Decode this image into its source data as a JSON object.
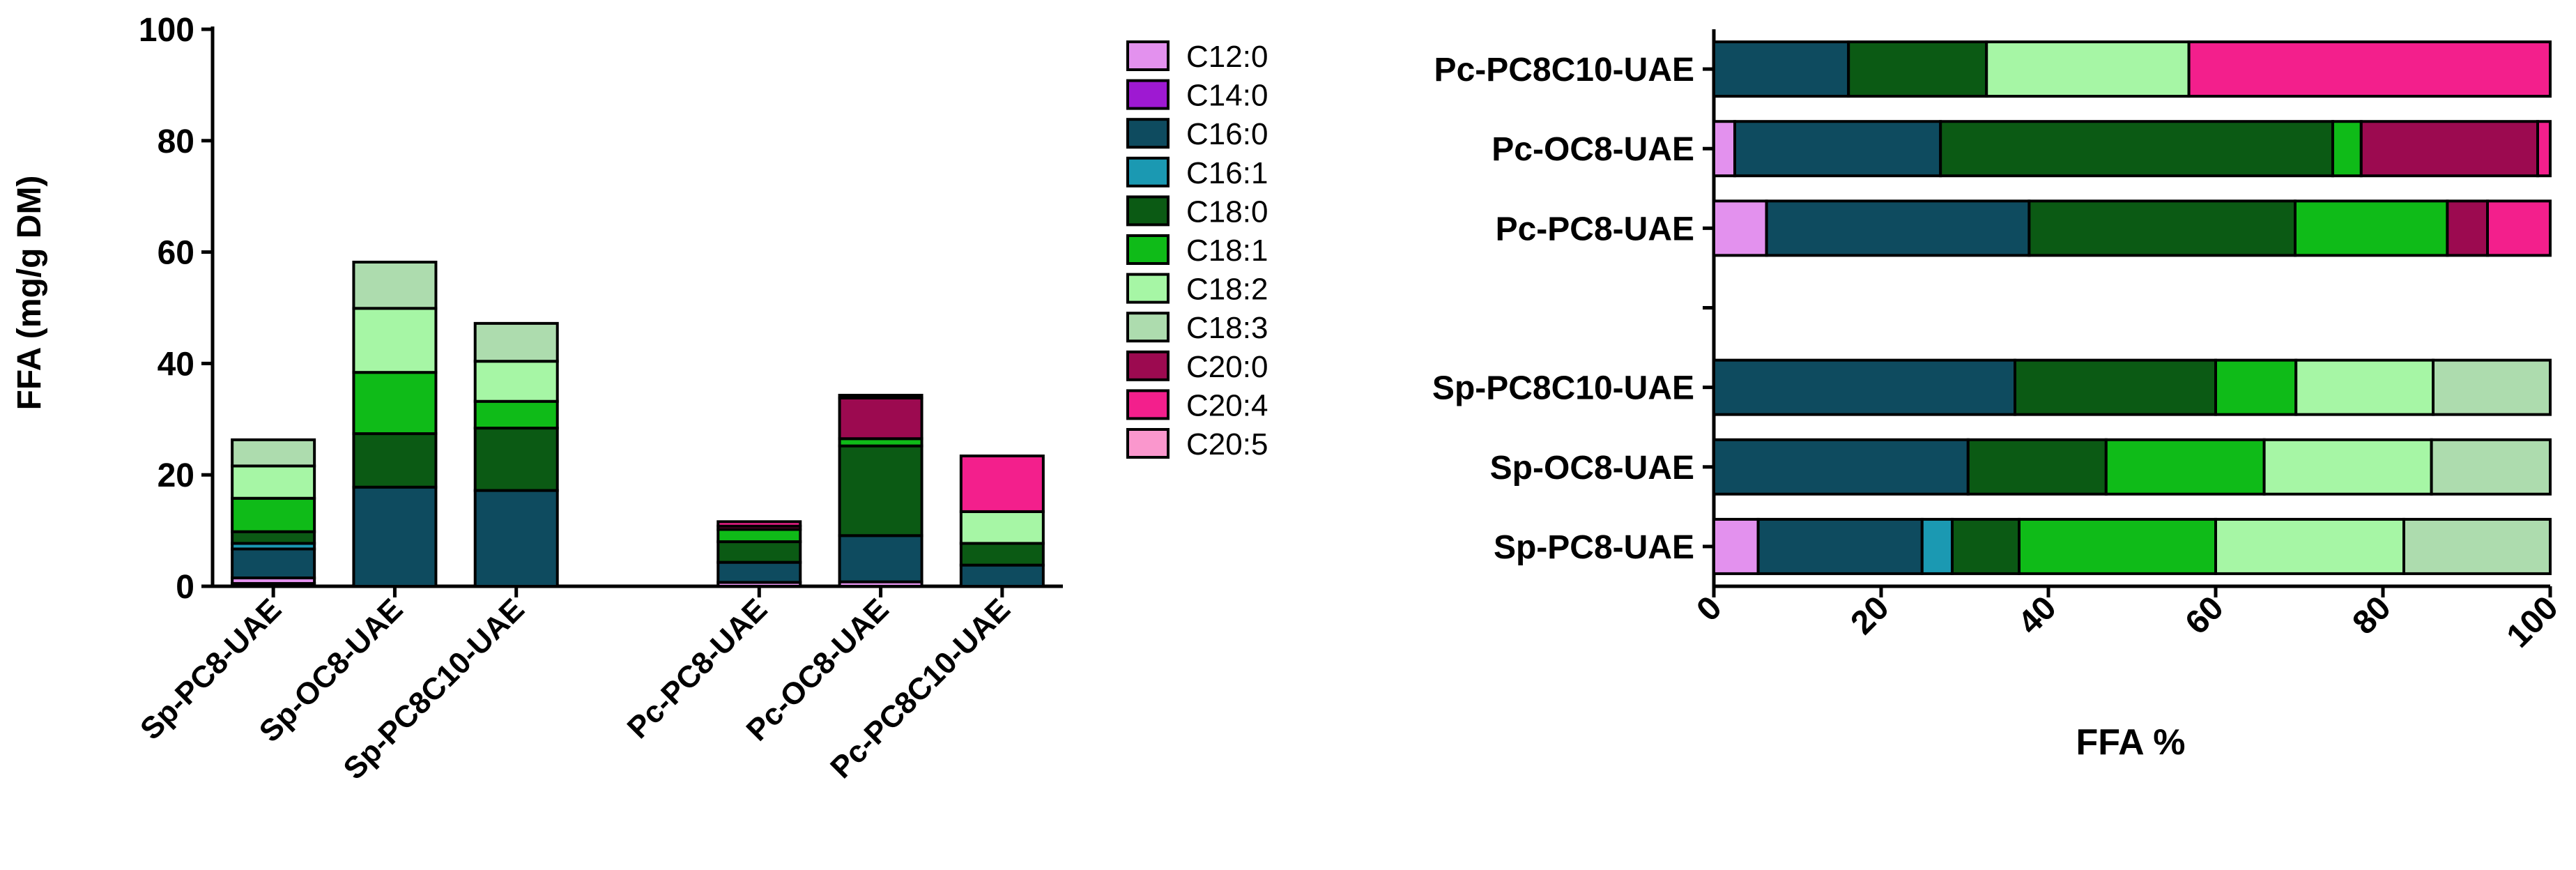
{
  "chart_data": [
    {
      "type": "bar",
      "stacked": true,
      "title": "",
      "ylabel": "FFA (mg/g DM)",
      "xlabel": "",
      "ylim": [
        0,
        100
      ],
      "yticks": [
        0,
        20,
        40,
        60,
        80,
        100
      ],
      "categories": [
        "Sp-PC8-UAE",
        "Sp-OC8-UAE",
        "Sp-PC8C10-UAE",
        "",
        "Pc-PC8-UAE",
        "Pc-OC8-UAE",
        "Pc-PC8C10-UAE"
      ],
      "series": [
        {
          "name": "C20:5",
          "values": [
            0.5,
            0,
            0,
            0,
            0,
            0,
            0
          ]
        },
        {
          "name": "C12:0",
          "values": [
            1.0,
            0,
            0,
            0,
            0.7,
            0.8,
            0
          ]
        },
        {
          "name": "C14:0",
          "values": [
            0,
            0,
            0,
            0,
            0,
            0,
            0
          ]
        },
        {
          "name": "C16:0",
          "values": [
            5.2,
            17.8,
            17.2,
            0,
            3.6,
            8.3,
            3.8
          ]
        },
        {
          "name": "C16:1",
          "values": [
            1.0,
            0,
            0,
            0,
            0,
            0,
            0
          ]
        },
        {
          "name": "C18:0",
          "values": [
            2.1,
            9.6,
            11.2,
            0,
            3.7,
            16.1,
            3.9
          ]
        },
        {
          "name": "C18:1",
          "values": [
            6.0,
            11.0,
            4.8,
            0,
            2.2,
            1.3,
            0
          ]
        },
        {
          "name": "C18:2",
          "values": [
            5.8,
            11.5,
            7.2,
            0,
            0,
            0,
            5.7
          ]
        },
        {
          "name": "C18:3",
          "values": [
            4.7,
            8.3,
            6.8,
            0,
            0,
            0,
            0
          ]
        },
        {
          "name": "C20:0",
          "values": [
            0,
            0,
            0,
            0,
            0.6,
            7.3,
            0
          ]
        },
        {
          "name": "C20:4",
          "values": [
            0,
            0,
            0,
            0,
            0.8,
            0.5,
            10.0
          ]
        }
      ]
    },
    {
      "type": "bar",
      "orientation": "horizontal",
      "stacked": true,
      "title": "",
      "xlabel": "FFA %",
      "ylabel": "",
      "xlim": [
        0,
        100
      ],
      "xticks": [
        0,
        20,
        40,
        60,
        80,
        100
      ],
      "categories": [
        "Pc-PC8C10-UAE",
        "Pc-OC8-UAE",
        "Pc-PC8-UAE",
        "",
        "Sp-PC8C10-UAE",
        "Sp-OC8-UAE",
        "Sp-PC8-UAE"
      ],
      "series": [
        {
          "name": "C12:0",
          "values": [
            0,
            2.5,
            6.3,
            0,
            0,
            0,
            5.3
          ]
        },
        {
          "name": "C16:0",
          "values": [
            16.1,
            24.6,
            31.4,
            0,
            36.0,
            30.4,
            19.6
          ]
        },
        {
          "name": "C16:1",
          "values": [
            0,
            0,
            0,
            0,
            0,
            0,
            3.6
          ]
        },
        {
          "name": "C18:0",
          "values": [
            16.5,
            46.9,
            31.8,
            0,
            24.0,
            16.5,
            8.0
          ]
        },
        {
          "name": "C18:1",
          "values": [
            0,
            3.4,
            18.2,
            0,
            9.6,
            18.9,
            23.5
          ]
        },
        {
          "name": "C18:2",
          "values": [
            24.2,
            0,
            0,
            0,
            16.4,
            20.0,
            22.5
          ]
        },
        {
          "name": "C18:3",
          "values": [
            0,
            0,
            0,
            0,
            14.0,
            14.2,
            17.5
          ]
        },
        {
          "name": "C20:0",
          "values": [
            0,
            21.1,
            4.8,
            0,
            0,
            0,
            0
          ]
        },
        {
          "name": "C20:4",
          "values": [
            43.2,
            1.5,
            7.5,
            0,
            0,
            0,
            0
          ]
        }
      ]
    }
  ],
  "legend": {
    "position": "center",
    "items": [
      {
        "label": "C12:0",
        "color": "#e391ee"
      },
      {
        "label": "C14:0",
        "color": "#9e19d2"
      },
      {
        "label": "C16:0",
        "color": "#0e4b5f"
      },
      {
        "label": "C16:1",
        "color": "#1b99b2"
      },
      {
        "label": "C18:0",
        "color": "#0b5a14"
      },
      {
        "label": "C18:1",
        "color": "#0fbb18"
      },
      {
        "label": "C18:2",
        "color": "#a6f6a5"
      },
      {
        "label": "C18:3",
        "color": "#addcae"
      },
      {
        "label": "C20:0",
        "color": "#9c0a50"
      },
      {
        "label": "C20:4",
        "color": "#f31f8c"
      },
      {
        "label": "C20:5",
        "color": "#fa97cd"
      }
    ]
  }
}
